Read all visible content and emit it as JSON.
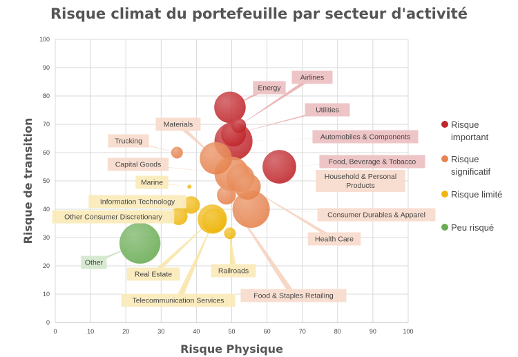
{
  "chart_data": {
    "type": "scatter",
    "title": "Risque climat du portefeuille par secteur d'activité",
    "xlabel": "Risque Physique",
    "ylabel": "Risque de transition",
    "xlim": [
      0,
      100
    ],
    "ylim": [
      0,
      100
    ],
    "x_ticks": [
      "0",
      "10",
      "20",
      "30",
      "40",
      "50",
      "60",
      "70",
      "80",
      "90",
      "100"
    ],
    "y_ticks": [
      "0",
      "10",
      "20",
      "30",
      "40",
      "50",
      "60",
      "70",
      "80",
      "90",
      "100"
    ],
    "grid": true,
    "legend_position": "right",
    "categories": [
      {
        "id": "important",
        "label": "Risque important",
        "color": "#c0262b"
      },
      {
        "id": "significatif",
        "label": "Risque significatif",
        "color": "#e6834e"
      },
      {
        "id": "limite",
        "label": "Risque limité",
        "color": "#eeb70f"
      },
      {
        "id": "peu",
        "label": "Peu risqué",
        "color": "#6aac54"
      }
    ],
    "series": [
      {
        "name": "Energy",
        "category": "important",
        "x": 49.5,
        "y": 76,
        "size": 4.3
      },
      {
        "name": "Airlines",
        "category": "important",
        "x": 52,
        "y": 69.5,
        "size": 2
      },
      {
        "name": "Utilities",
        "category": "important",
        "x": 50.5,
        "y": 66.5,
        "size": 3.4
      },
      {
        "name": "Automobiles & Components",
        "category": "important",
        "x": 50.5,
        "y": 64,
        "size": 5.2
      },
      {
        "name": "Food, Beverage & Tobacco",
        "category": "important",
        "x": 63.5,
        "y": 55,
        "size": 4.6
      },
      {
        "name": "Materials",
        "category": "significatif",
        "x": 45.5,
        "y": 58,
        "size": 4.4
      },
      {
        "name": "Trucking",
        "category": "significatif",
        "x": 34.5,
        "y": 60,
        "size": 1.6
      },
      {
        "name": "Capital Goods",
        "category": "significatif",
        "x": 50,
        "y": 52.5,
        "size": 4.7
      },
      {
        "name": "Household & Personal Products",
        "category": "significatif",
        "x": 52.5,
        "y": 51,
        "size": 3.8
      },
      {
        "name": "Consumer Durables & Apparel",
        "category": "significatif",
        "x": 55.5,
        "y": 40,
        "size": 5.1
      },
      {
        "name": "Health Care",
        "category": "significatif",
        "x": 54.5,
        "y": 48,
        "size": 3.6
      },
      {
        "name": "Food & Staples Retailing",
        "category": "significatif",
        "x": 48.5,
        "y": 45,
        "size": 2.6
      },
      {
        "name": "Marine",
        "category": "limite",
        "x": 38,
        "y": 48,
        "size": 0.5
      },
      {
        "name": "Information Technology",
        "category": "limite",
        "x": 38.5,
        "y": 41.5,
        "size": 2.4
      },
      {
        "name": "Other Consumer Discretionary",
        "category": "limite",
        "x": 35,
        "y": 37.5,
        "size": 2.4
      },
      {
        "name": "Real Estate",
        "category": "limite",
        "x": 44.5,
        "y": 36.5,
        "size": 4
      },
      {
        "name": "Telecommunication Services",
        "category": "limite",
        "x": 45,
        "y": 36,
        "size": 3.3
      },
      {
        "name": "Railroads",
        "category": "limite",
        "x": 49.5,
        "y": 31.5,
        "size": 1.6
      },
      {
        "name": "Other",
        "category": "peu",
        "x": 24,
        "y": 28,
        "size": 5.6
      }
    ]
  }
}
